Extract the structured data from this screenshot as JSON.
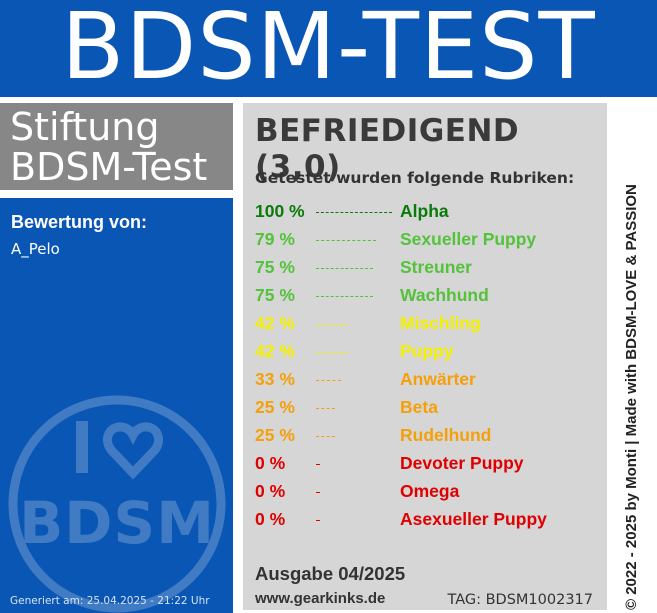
{
  "header": {
    "title": "BDSM-TEST"
  },
  "publisher": {
    "line1": "Stiftung",
    "line2": "BDSM-Test"
  },
  "evaluation": {
    "label": "Bewertung von:",
    "user": "A_Pelo"
  },
  "generated": "Generiert am: 25.04.2025 - 21:22 Uhr",
  "logo": {
    "text": "I ♥ BDSM",
    "icon": "heart-icon"
  },
  "result": {
    "grade": "BEFRIEDIGEND (3,0)",
    "tested_label": "Getestet wurden folgende Rubriken:",
    "items": [
      {
        "percent": "100 %",
        "value": 100,
        "name": "Alpha",
        "color": "#0a7a0a"
      },
      {
        "percent": "79 %",
        "value": 79,
        "name": "Sexueller Puppy",
        "color": "#54c23b"
      },
      {
        "percent": "75 %",
        "value": 75,
        "name": "Streuner",
        "color": "#54c23b"
      },
      {
        "percent": "75 %",
        "value": 75,
        "name": "Wachhund",
        "color": "#54c23b"
      },
      {
        "percent": "42 %",
        "value": 42,
        "name": "Mischling",
        "color": "#f5f000"
      },
      {
        "percent": "42 %",
        "value": 42,
        "name": "Puppy",
        "color": "#f5f000"
      },
      {
        "percent": "33 %",
        "value": 33,
        "name": "Anwärter",
        "color": "#f5a00a"
      },
      {
        "percent": "25 %",
        "value": 25,
        "name": "Beta",
        "color": "#f5a00a"
      },
      {
        "percent": "25 %",
        "value": 25,
        "name": "Rudelhund",
        "color": "#f5a00a"
      },
      {
        "percent": "0 %",
        "value": 0,
        "name": "Devoter Puppy",
        "color": "#e00000"
      },
      {
        "percent": "0 %",
        "value": 0,
        "name": "Omega",
        "color": "#e00000"
      },
      {
        "percent": "0 %",
        "value": 0,
        "name": "Asexueller Puppy",
        "color": "#e00000"
      }
    ],
    "issue": "Ausgabe 04/2025",
    "website": "www.gearkinks.de",
    "tag": "TAG: BDSM1002317"
  },
  "vertical_credit": "© 2022 - 2025 by Monti | Made with BDSM-LOVE & PASSION",
  "colors": {
    "brand_blue": "#0a56b4",
    "panel_gray": "#878787",
    "main_bg": "#d6d6d6"
  }
}
